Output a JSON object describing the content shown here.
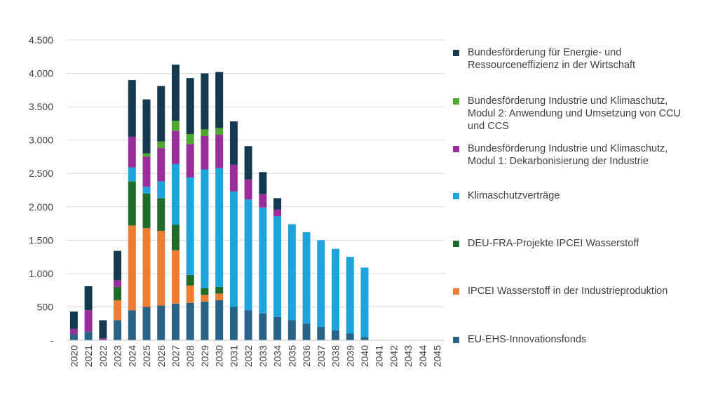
{
  "chart_data": {
    "type": "bar",
    "stacked": true,
    "title": "",
    "xlabel": "",
    "ylabel": "",
    "ylim": [
      0,
      4500
    ],
    "yticks": [
      0,
      500,
      1000,
      1500,
      2000,
      2500,
      3000,
      3500,
      4000,
      4500
    ],
    "ytick_labels": [
      "-",
      "500",
      "1.000",
      "1.500",
      "2.000",
      "2.500",
      "3.000",
      "3.500",
      "4.000",
      "4.500"
    ],
    "grid": "horizontal",
    "legend_placement": "right",
    "categories": [
      "2020",
      "2021",
      "2022",
      "2023",
      "2024",
      "2025",
      "2026",
      "2027",
      "2028",
      "2029",
      "2030",
      "2031",
      "2032",
      "2033",
      "2034",
      "2035",
      "2036",
      "2037",
      "2038",
      "2039",
      "2040",
      "2041",
      "2042",
      "2043",
      "2044",
      "2045"
    ],
    "series": [
      {
        "name": "EU-EHS-Innovationsfonds",
        "color": "#2a6388",
        "values": [
          90,
          130,
          10,
          300,
          450,
          500,
          520,
          550,
          560,
          580,
          600,
          500,
          450,
          400,
          350,
          300,
          250,
          200,
          150,
          100,
          50,
          0,
          0,
          0,
          0,
          0
        ]
      },
      {
        "name": "IPCEI Wasserstoff in der Industrieproduktion",
        "color": "#ed7d31",
        "values": [
          0,
          0,
          0,
          300,
          1270,
          1180,
          1120,
          800,
          260,
          100,
          100,
          0,
          0,
          0,
          0,
          0,
          0,
          0,
          0,
          0,
          0,
          0,
          0,
          0,
          0,
          0
        ]
      },
      {
        "name": "DEU-FRA-Projekte IPCEI Wasserstoff",
        "color": "#1e6b2a",
        "values": [
          0,
          0,
          0,
          200,
          660,
          520,
          490,
          380,
          160,
          100,
          100,
          0,
          0,
          0,
          0,
          0,
          0,
          0,
          0,
          0,
          0,
          0,
          0,
          0,
          0,
          0
        ]
      },
      {
        "name": "Klimaschutzverträge",
        "color": "#1ea4dd",
        "values": [
          0,
          0,
          0,
          0,
          210,
          100,
          250,
          910,
          1460,
          1780,
          1780,
          1730,
          1660,
          1590,
          1510,
          1440,
          1370,
          1300,
          1220,
          1150,
          1040,
          0,
          0,
          0,
          0,
          0
        ]
      },
      {
        "name": "Bundesförderung Industrie und Klimaschutz, Modul 1: Dekarbonisierung der Industrie",
        "color": "#9a2d99",
        "values": [
          80,
          320,
          20,
          100,
          460,
          450,
          500,
          500,
          500,
          500,
          500,
          400,
          300,
          200,
          100,
          0,
          0,
          0,
          0,
          0,
          0,
          0,
          0,
          0,
          0,
          0
        ]
      },
      {
        "name": "Bundesförderung Industrie und Klimaschutz, Modul 2: Anwendung und Umsetzung von CCU und CCS",
        "color": "#4ea72e",
        "values": [
          0,
          0,
          0,
          0,
          0,
          50,
          100,
          150,
          150,
          100,
          100,
          0,
          0,
          0,
          0,
          0,
          0,
          0,
          0,
          0,
          0,
          0,
          0,
          0,
          0,
          0
        ]
      },
      {
        "name": "Bundesförderung für Energie- und Ressourceneffizienz in der Wirtschaft",
        "color": "#133a4e",
        "values": [
          260,
          360,
          270,
          440,
          850,
          810,
          830,
          840,
          840,
          840,
          840,
          650,
          500,
          330,
          170,
          0,
          0,
          0,
          0,
          0,
          0,
          0,
          0,
          0,
          0,
          0
        ]
      }
    ]
  },
  "legend": [
    {
      "label": "Bundesförderung für Energie- und\nRessourceneffizienz in der Wirtschaft",
      "color": "#133a4e"
    },
    {
      "label": "Bundesförderung Industrie und Klimaschutz,\nModul 2: Anwendung und Umsetzung von CCU\nund CCS",
      "color": "#4ea72e"
    },
    {
      "label": "Bundesförderung Industrie und Klimaschutz,\nModul 1: Dekarbonisierung der Industrie",
      "color": "#9a2d99"
    },
    {
      "label": "Klimaschutzverträge",
      "color": "#1ea4dd"
    },
    {
      "label": "DEU-FRA-Projekte IPCEI Wasserstoff",
      "color": "#1e6b2a"
    },
    {
      "label": "IPCEI Wasserstoff in der Industrieproduktion",
      "color": "#ed7d31"
    },
    {
      "label": "EU-EHS-Innovationsfonds",
      "color": "#2a6388"
    }
  ]
}
